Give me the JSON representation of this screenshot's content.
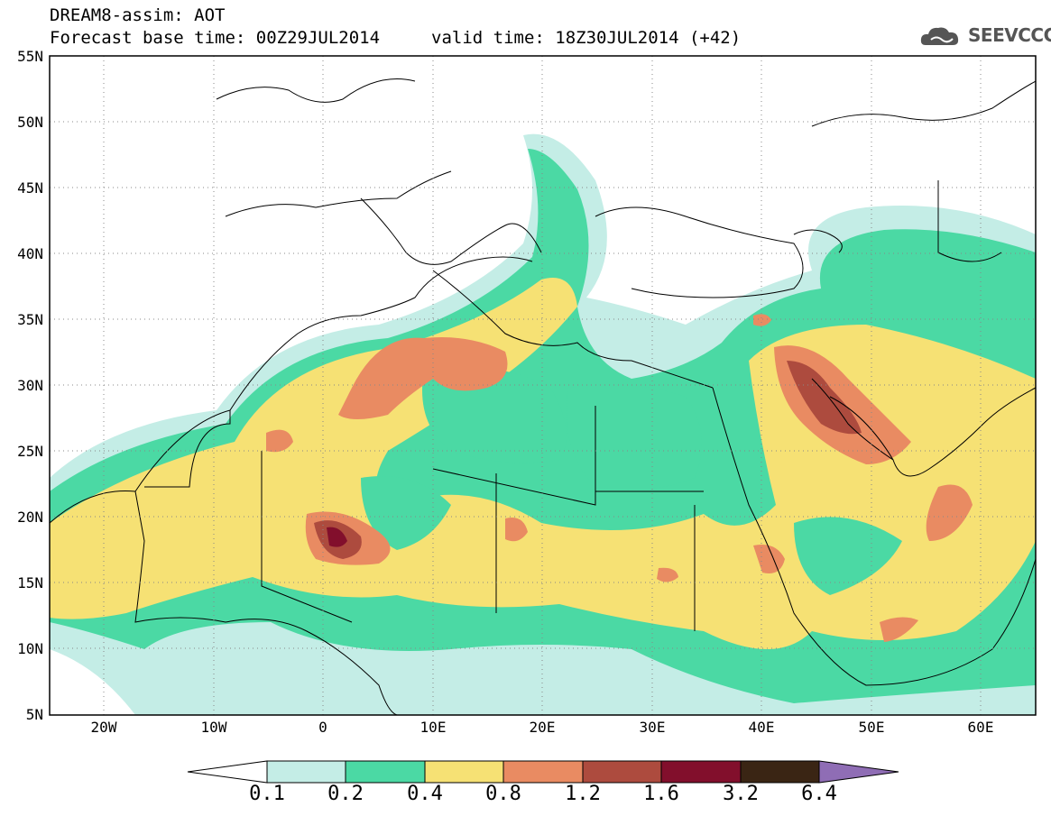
{
  "header": {
    "title": "DREAM8-assim: AOT",
    "base_time": "Forecast base time: 00Z29JUL2014",
    "valid_time": "valid time: 18Z30JUL2014 (+42)",
    "logo_text": "SEEVCCC"
  },
  "map": {
    "lon_range": [
      -25,
      65
    ],
    "lat_range": [
      5,
      55
    ],
    "lat_ticks": [
      "55N",
      "50N",
      "45N",
      "40N",
      "35N",
      "30N",
      "25N",
      "20N",
      "15N",
      "10N",
      "5N"
    ],
    "lon_ticks": [
      "20W",
      "10W",
      "0",
      "10E",
      "20E",
      "30E",
      "40E",
      "50E",
      "60E"
    ]
  },
  "colorbar": {
    "labels": [
      "0.1",
      "0.2",
      "0.4",
      "0.8",
      "1.2",
      "1.6",
      "3.2",
      "6.4"
    ],
    "colors": [
      "#c4ede6",
      "#4bd9a4",
      "#f6e174",
      "#e98b62",
      "#ad4b3e",
      "#820f2c",
      "#3a2514",
      "#8f6db5"
    ]
  }
}
